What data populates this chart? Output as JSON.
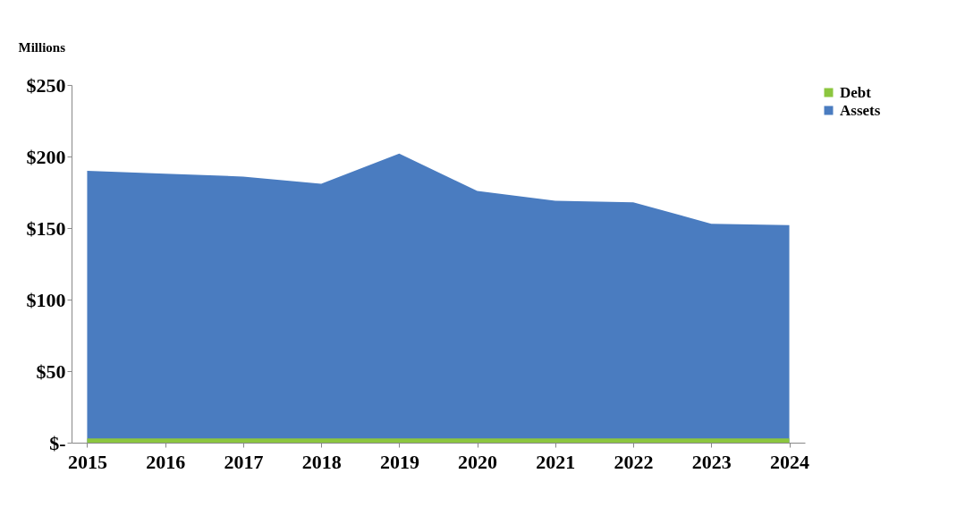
{
  "chart_data": {
    "type": "area",
    "ylabel": "Millions",
    "categories": [
      "2015",
      "2016",
      "2017",
      "2018",
      "2019",
      "2020",
      "2021",
      "2022",
      "2023",
      "2024"
    ],
    "series": [
      {
        "name": "Debt",
        "color": "#8cc63f",
        "values": [
          3,
          3,
          3,
          3,
          3,
          3,
          3,
          3,
          3,
          3
        ]
      },
      {
        "name": "Assets",
        "color": "#4a7cc0",
        "values": [
          190,
          188,
          186,
          181,
          202,
          176,
          169,
          168,
          153,
          152
        ]
      }
    ],
    "ylim": [
      0,
      250
    ],
    "yticks": [
      {
        "value": 0,
        "label": "$-"
      },
      {
        "value": 50,
        "label": "$50"
      },
      {
        "value": 100,
        "label": "$100"
      },
      {
        "value": 150,
        "label": "$150"
      },
      {
        "value": 200,
        "label": "$200"
      },
      {
        "value": 250,
        "label": "$250"
      }
    ],
    "grid": false,
    "legend": "right"
  }
}
